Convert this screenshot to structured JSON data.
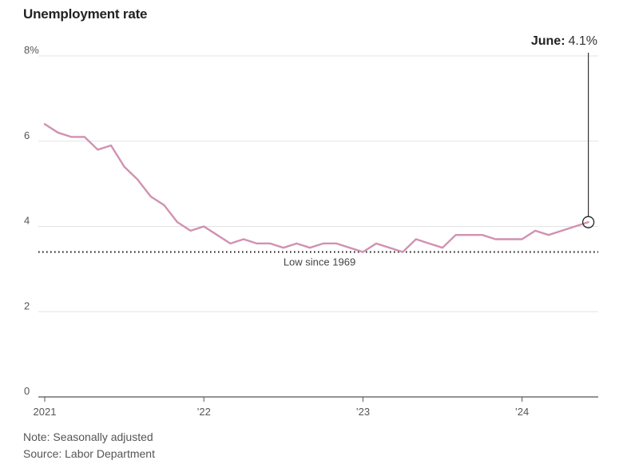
{
  "chart_data": {
    "type": "line",
    "title": "Unemployment rate",
    "xlabel": "",
    "ylabel": "",
    "ylim": [
      0,
      8
    ],
    "y_ticks": [
      0,
      2,
      4,
      6,
      8
    ],
    "y_tick_labels": [
      "0",
      "2",
      "4",
      "6",
      "8%"
    ],
    "x_ticks": [
      {
        "label": "2021",
        "month_index": 0
      },
      {
        "label": "’22",
        "month_index": 12
      },
      {
        "label": "’23",
        "month_index": 24
      },
      {
        "label": "’24",
        "month_index": 36
      }
    ],
    "series": [
      {
        "name": "Unemployment rate",
        "color": "#d291b1",
        "start": "2021-01",
        "values": [
          6.4,
          6.2,
          6.1,
          6.1,
          5.8,
          5.9,
          5.4,
          5.1,
          4.7,
          4.5,
          4.1,
          3.9,
          4.0,
          3.8,
          3.6,
          3.7,
          3.6,
          3.6,
          3.5,
          3.6,
          3.5,
          3.6,
          3.6,
          3.5,
          3.4,
          3.6,
          3.5,
          3.4,
          3.7,
          3.6,
          3.5,
          3.8,
          3.8,
          3.8,
          3.7,
          3.7,
          3.7,
          3.9,
          3.8,
          3.9,
          4.0,
          4.1
        ]
      }
    ],
    "reference_line": {
      "value": 3.4,
      "label": "Low since 1969",
      "style": "dotted"
    },
    "callout": {
      "label": "June:",
      "value_text": "4.1%",
      "value": 4.1,
      "month_index": 41
    }
  },
  "footer": {
    "note": "Note: Seasonally adjusted",
    "source": "Source: Labor Department"
  },
  "colors": {
    "line": "#d291b1",
    "grid": "#e3e3e3",
    "axis": "#555555",
    "reference": "#333333"
  }
}
